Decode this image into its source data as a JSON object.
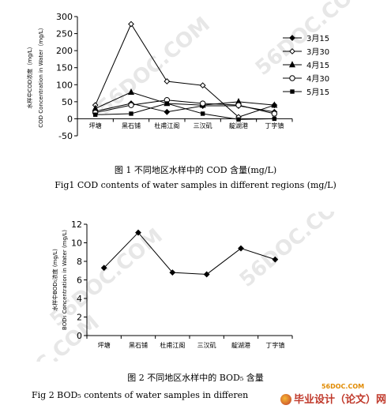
{
  "chart_data": [
    {
      "type": "line",
      "categories": [
        "坪塘",
        "黑石铺",
        "杜甫江阁",
        "三汉矶",
        "靛湖港",
        "丁字镇"
      ],
      "ylabel": "水样中COD浓度（mg/L）",
      "ylabel2": "COD Concentration in Water（mg/L）",
      "ylim": [
        -50,
        300
      ],
      "yticks": [
        -50,
        0,
        50,
        100,
        150,
        200,
        250,
        300
      ],
      "series": [
        {
          "name": "3月15",
          "marker": "diamond-filled",
          "values": [
            22,
            45,
            20,
            38,
            38,
            20
          ]
        },
        {
          "name": "3月30",
          "marker": "diamond-open",
          "values": [
            40,
            278,
            110,
            98,
            5,
            40
          ]
        },
        {
          "name": "4月15",
          "marker": "triangle-filled",
          "values": [
            30,
            78,
            45,
            40,
            50,
            40
          ]
        },
        {
          "name": "4月30",
          "marker": "circle-open",
          "values": [
            18,
            40,
            55,
            45,
            40,
            15
          ]
        },
        {
          "name": "5月15",
          "marker": "square-filled",
          "values": [
            12,
            15,
            45,
            15,
            -2,
            0
          ]
        }
      ],
      "legend": "right",
      "caption_cn": "图 1  不同地区水样中的 COD 含量(mg/L)",
      "caption_en": "Fig1 COD contents of water samples in different regions (mg/L)"
    },
    {
      "type": "line",
      "categories": [
        "坪塘",
        "黑石铺",
        "杜甫江阁",
        "三汉矶",
        "靛湖港",
        "丁字镇"
      ],
      "ylabel": "水样中BOD₅浓度 (mg/L)",
      "ylabel2": "BOD₅ Concentration in Water (mg/L)",
      "ylim": [
        0,
        12
      ],
      "yticks": [
        0,
        2,
        4,
        6,
        8,
        10,
        12
      ],
      "series": [
        {
          "marker": "diamond-filled",
          "values": [
            7.3,
            11.1,
            6.8,
            6.6,
            9.4,
            8.2
          ]
        }
      ],
      "caption_cn": "图 2 不同地区水样中的 BOD₅ 含量",
      "caption_en": "Fig 2 BOD₅ contents of water samples in differen"
    }
  ],
  "watermark": "56DOC.COM",
  "logo": {
    "main": "毕业设计（论文）网",
    "small": "56DOC.COM"
  }
}
